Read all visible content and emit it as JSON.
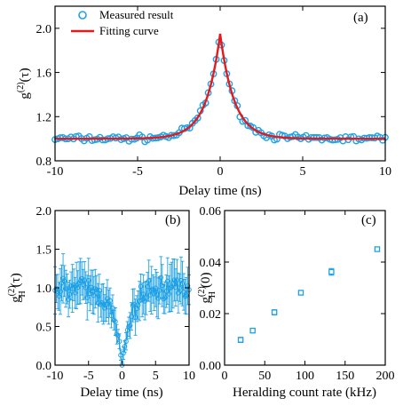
{
  "chart_data": [
    {
      "type": "scatter",
      "panel_label": "(a)",
      "xlabel": "Delay time (ns)",
      "ylabel_base": "g",
      "ylabel_sup": "(2)",
      "ylabel_tail": "(τ)",
      "xlim": [
        -10,
        10
      ],
      "ylim": [
        0.8,
        2.2
      ],
      "xticks": [
        -10,
        -5,
        0,
        5,
        10
      ],
      "xtick_labels": [
        "-10",
        "-5",
        "0",
        "5",
        "10"
      ],
      "yticks": [
        0.8,
        1.2,
        1.6,
        2.0
      ],
      "ytick_labels": [
        "0.8",
        "1.2",
        "1.6",
        "2.0"
      ],
      "legend_position": "top-left",
      "series": [
        {
          "name": "Measured result",
          "kind": "open-circles",
          "color": "#1ea1e6",
          "model": {
            "baseline": 1.0,
            "peak": 1.95,
            "decay_ns": 0.85,
            "x_step_ns": 0.16,
            "noise": 0.04
          }
        },
        {
          "name": "Fitting curve",
          "kind": "line",
          "color": "#e41a1c",
          "model": {
            "baseline": 1.0,
            "peak": 1.95,
            "decay_ns": 0.85
          }
        }
      ]
    },
    {
      "type": "scatter",
      "panel_label": "(b)",
      "xlabel": "Delay time (ns)",
      "ylabel_base": "g",
      "ylabel_sup": "(2)",
      "ylabel_sub": "H",
      "ylabel_tail": "(τ)",
      "xlim": [
        -10,
        10
      ],
      "ylim": [
        0.0,
        2.0
      ],
      "xticks": [
        -10,
        -5,
        0,
        5,
        10
      ],
      "xtick_labels": [
        "-10",
        "-5",
        "0",
        "5",
        "10"
      ],
      "yticks": [
        0.0,
        0.5,
        1.0,
        1.5,
        2.0
      ],
      "ytick_labels": [
        "0.0",
        "0.5",
        "1.0",
        "1.5",
        "2.0"
      ],
      "series": [
        {
          "kind": "open-circles-with-errorbars-connected",
          "color": "#1ea1e6",
          "model": {
            "baseline": 1.0,
            "dip_decay_ns": 1.4,
            "x_step_ns": 0.2,
            "noise": 0.22,
            "error": 0.25
          }
        }
      ]
    },
    {
      "type": "scatter",
      "panel_label": "(c)",
      "xlabel": "Heralding count rate (kHz)",
      "ylabel_base": "g",
      "ylabel_sup": "(2)",
      "ylabel_sub": "H",
      "ylabel_tail": "(0)",
      "xlim": [
        0,
        200
      ],
      "ylim": [
        0.0,
        0.06
      ],
      "xticks": [
        0,
        50,
        100,
        150,
        200
      ],
      "xtick_labels": [
        "0",
        "50",
        "100",
        "150",
        "200"
      ],
      "yticks": [
        0.0,
        0.02,
        0.04,
        0.06
      ],
      "ytick_labels": [
        "0.00",
        "0.02",
        "0.04",
        "0.06"
      ],
      "series": [
        {
          "kind": "open-squares-with-errorbars",
          "color": "#1ea1e6",
          "x": [
            20,
            35,
            62,
            95,
            133,
            190
          ],
          "y": [
            0.0098,
            0.0134,
            0.0205,
            0.0281,
            0.0362,
            0.045
          ],
          "err": [
            0.001,
            0.0008,
            0.001,
            0.0008,
            0.0013,
            0.0008
          ]
        }
      ]
    }
  ]
}
